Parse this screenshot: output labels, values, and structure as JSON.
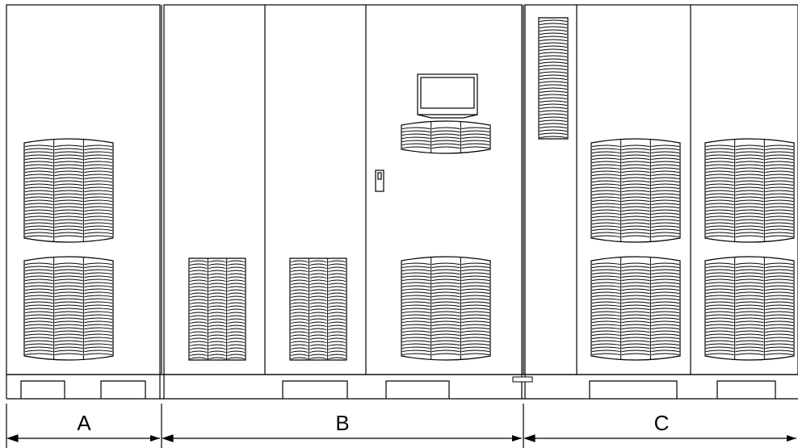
{
  "diagram": {
    "sections": [
      {
        "label": "A"
      },
      {
        "label": "B"
      },
      {
        "label": "C"
      }
    ]
  }
}
